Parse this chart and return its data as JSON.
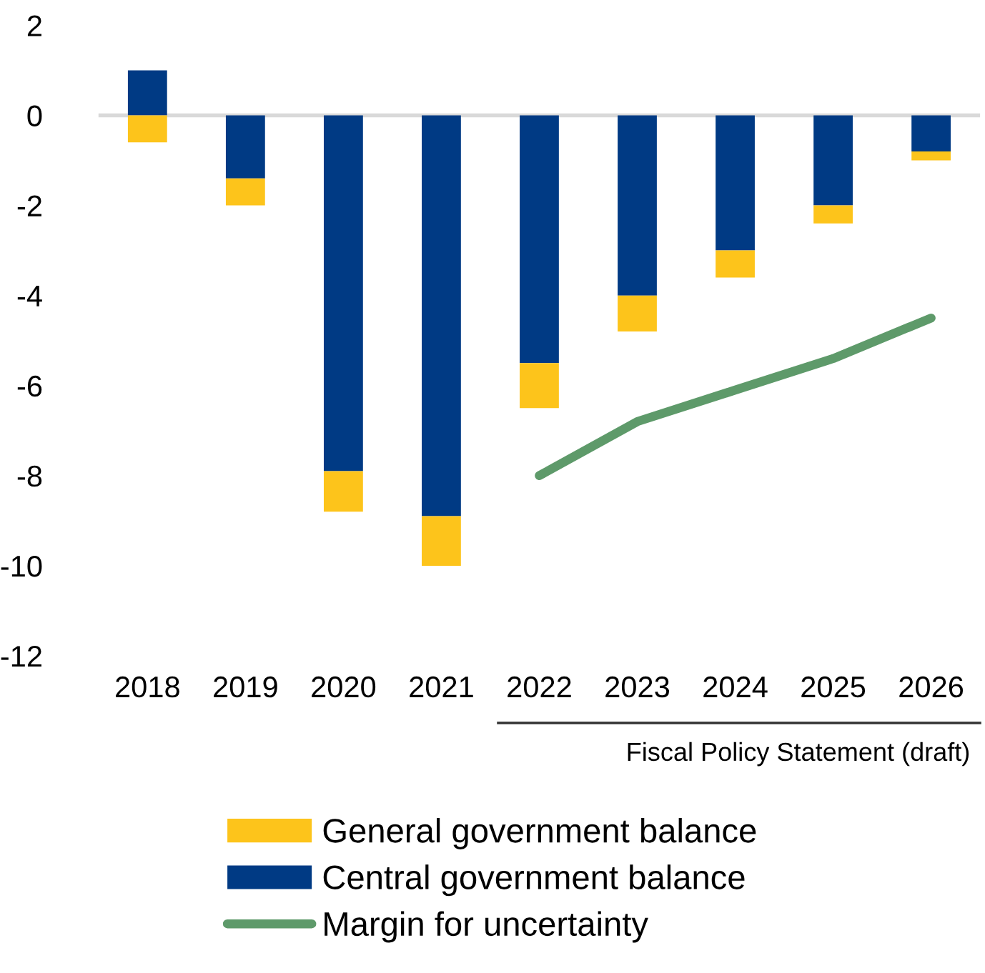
{
  "chart_data": {
    "type": "bar",
    "stacked": true,
    "categories": [
      "2018",
      "2019",
      "2020",
      "2021",
      "2022",
      "2023",
      "2024",
      "2025",
      "2026"
    ],
    "series": [
      {
        "name": "Central government balance",
        "color": "#003a84",
        "values": [
          1.0,
          -1.4,
          -7.9,
          -8.9,
          -5.5,
          -4.0,
          -3.0,
          -2.0,
          -0.8
        ]
      },
      {
        "name": "General government balance",
        "color": "#fdc41b",
        "values": [
          -0.6,
          -0.6,
          -0.9,
          -1.1,
          -1.0,
          -0.8,
          -0.6,
          -0.4,
          -0.2
        ]
      },
      {
        "name": "Margin for uncertainty",
        "type": "line",
        "color": "#5e9a6a",
        "values": [
          null,
          null,
          null,
          null,
          -8.0,
          -6.8,
          -6.1,
          -5.4,
          -4.5
        ]
      }
    ],
    "ylim": [
      -12,
      2
    ],
    "yticks": [
      -12,
      -10,
      -8,
      -6,
      -4,
      -2,
      0,
      2
    ],
    "ref_lines": [
      {
        "axis": "y",
        "value": 0,
        "color": "#d9d9d9"
      }
    ],
    "annotations": [
      "Fiscal Policy Statement (draft)"
    ],
    "grid": false,
    "legend": "bottom",
    "marker": "none",
    "line_style": "solid"
  }
}
